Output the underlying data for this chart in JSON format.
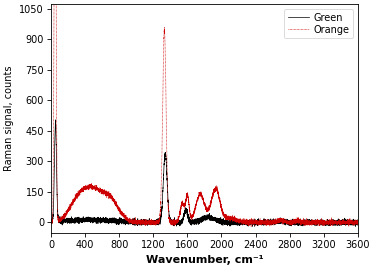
{
  "title": "",
  "xlabel": "Wavenumber, cm⁻¹",
  "ylabel": "Raman signal, counts",
  "xlim": [
    0,
    3600
  ],
  "ylim": [
    -50,
    1075
  ],
  "yticks": [
    0,
    150,
    300,
    450,
    600,
    750,
    900,
    1050
  ],
  "xticks": [
    0,
    400,
    800,
    1200,
    1600,
    2000,
    2400,
    2800,
    3200,
    3600
  ],
  "green_color": "#000000",
  "orange_color": "#cc0000",
  "legend_entries": [
    "Green",
    "Orange"
  ],
  "figsize": [
    3.74,
    2.69
  ],
  "dpi": 100
}
